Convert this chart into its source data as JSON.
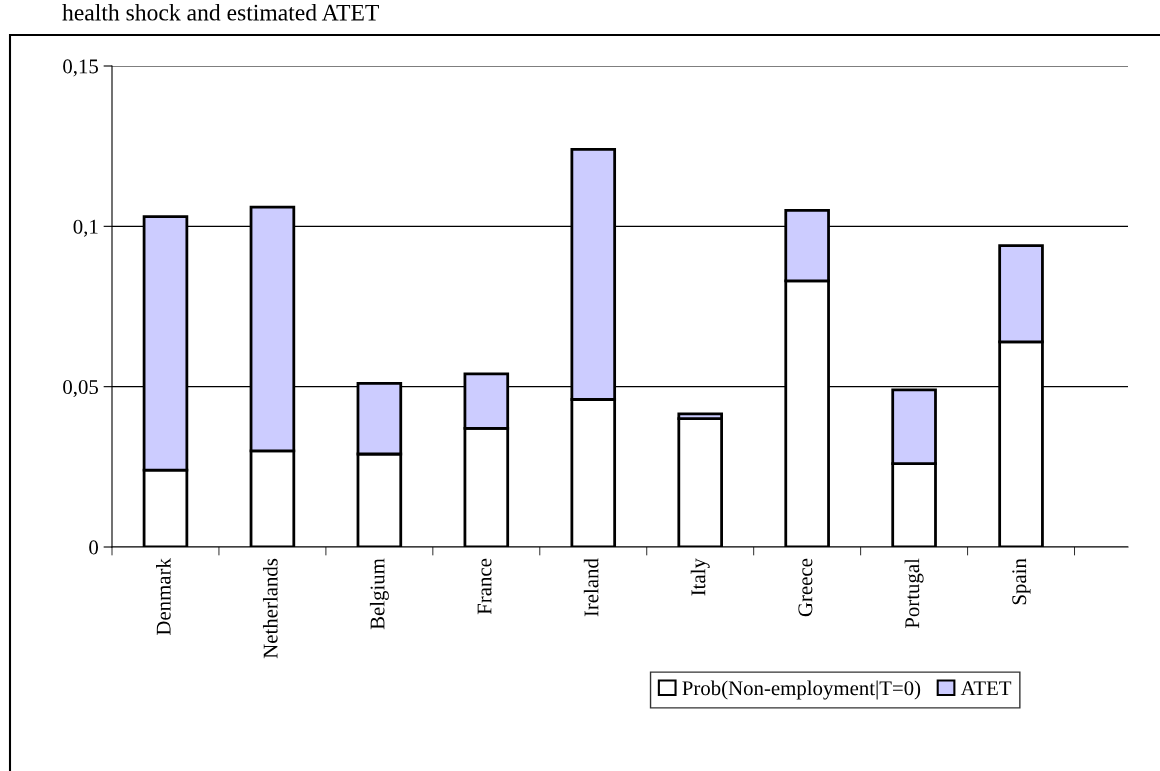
{
  "chart_data": {
    "type": "bar",
    "title": "health shock and estimated ATET",
    "stacked": true,
    "categories": [
      "Denmark",
      "Netherlands",
      "Belgium",
      "France",
      "Ireland",
      "Italy",
      "Greece",
      "Portugal",
      "Spain"
    ],
    "series": [
      {
        "name": "Prob(Non-employment|T=0)",
        "color": "#ffffff",
        "values": [
          0.024,
          0.03,
          0.029,
          0.037,
          0.046,
          0.04,
          0.083,
          0.026,
          0.064
        ]
      },
      {
        "name": "ATET",
        "color": "#ccccff",
        "values": [
          0.079,
          0.076,
          0.022,
          0.017,
          0.078,
          0.0015,
          0.022,
          0.023,
          0.03
        ]
      }
    ],
    "ylim": [
      0,
      0.15
    ],
    "yticks": [
      {
        "value": 0,
        "label": "0"
      },
      {
        "value": 0.05,
        "label": "0,05"
      },
      {
        "value": 0.1,
        "label": "0,1"
      },
      {
        "value": 0.15,
        "label": "0,15"
      }
    ],
    "grid": "y",
    "legend": "bottom"
  }
}
